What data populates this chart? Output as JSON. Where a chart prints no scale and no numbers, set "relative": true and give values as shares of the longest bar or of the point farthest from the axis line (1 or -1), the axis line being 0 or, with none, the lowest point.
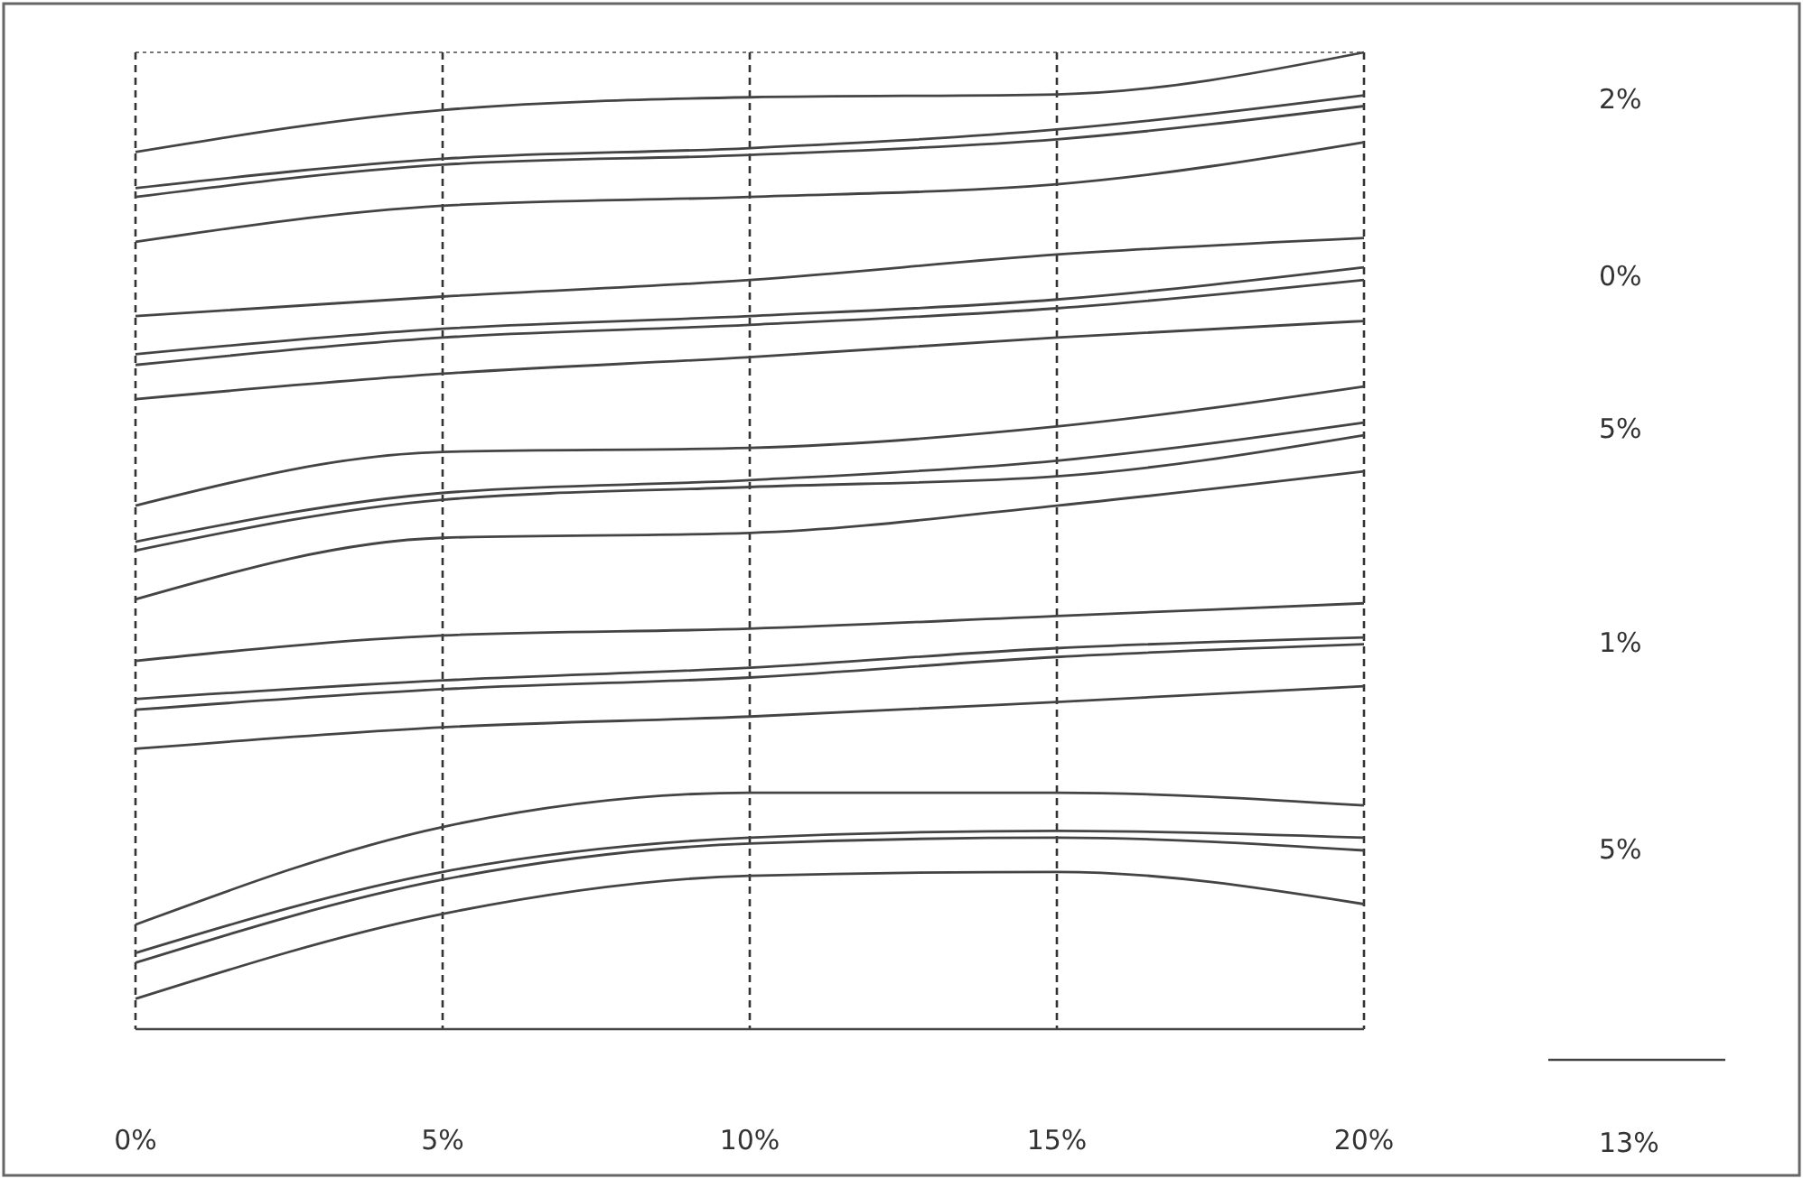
{
  "chart_data": {
    "type": "line",
    "relative": true,
    "x": [
      0,
      5,
      10,
      15,
      20
    ],
    "xlim": [
      0,
      20
    ],
    "xticks": [
      {
        "value": 0,
        "label": "0%"
      },
      {
        "value": 5,
        "label": "5%"
      },
      {
        "value": 10,
        "label": "10%"
      },
      {
        "value": 15,
        "label": "15%"
      },
      {
        "value": 20,
        "label": "20%"
      }
    ],
    "grid": "x",
    "marker": "none",
    "line_style": "solid",
    "annotations": [
      "2%",
      "0%",
      "5%",
      "1%",
      "5%",
      "13%"
    ],
    "series": [
      {
        "color": "#444444",
        "values": [
          0.898,
          0.941,
          0.954,
          0.957,
          1
        ]
      },
      {
        "color": "#444444",
        "values": [
          0.861,
          0.891,
          0.902,
          0.921,
          0.956
        ]
      },
      {
        "color": "#444444",
        "values": [
          0.852,
          0.885,
          0.895,
          0.911,
          0.945
        ]
      },
      {
        "color": "#444444",
        "values": [
          0.806,
          0.843,
          0.852,
          0.865,
          0.908
        ]
      },
      {
        "color": "#444444",
        "values": [
          0.73,
          0.75,
          0.767,
          0.793,
          0.81
        ]
      },
      {
        "color": "#444444",
        "values": [
          0.691,
          0.717,
          0.73,
          0.747,
          0.78
        ]
      },
      {
        "color": "#444444",
        "values": [
          0.68,
          0.708,
          0.721,
          0.738,
          0.767
        ]
      },
      {
        "color": "#444444",
        "values": [
          0.645,
          0.671,
          0.688,
          0.708,
          0.725
        ]
      },
      {
        "color": "#444444",
        "values": [
          0.536,
          0.591,
          0.595,
          0.617,
          0.658
        ]
      },
      {
        "color": "#444444",
        "values": [
          0.499,
          0.549,
          0.562,
          0.582,
          0.621
        ]
      },
      {
        "color": "#444444",
        "values": [
          0.49,
          0.542,
          0.555,
          0.566,
          0.608
        ]
      },
      {
        "color": "#444444",
        "values": [
          0.44,
          0.503,
          0.508,
          0.536,
          0.571
        ]
      },
      {
        "color": "#444444",
        "values": [
          0.377,
          0.403,
          0.41,
          0.423,
          0.436
        ]
      },
      {
        "color": "#444444",
        "values": [
          0.338,
          0.357,
          0.37,
          0.39,
          0.401
        ]
      },
      {
        "color": "#444444",
        "values": [
          0.327,
          0.348,
          0.36,
          0.381,
          0.394
        ]
      },
      {
        "color": "#444444",
        "values": [
          0.287,
          0.309,
          0.32,
          0.335,
          0.351
        ]
      },
      {
        "color": "#444444",
        "values": [
          0.107,
          0.207,
          0.242,
          0.242,
          0.229
        ]
      },
      {
        "color": "#444444",
        "values": [
          0.078,
          0.161,
          0.196,
          0.203,
          0.196
        ]
      },
      {
        "color": "#444444",
        "values": [
          0.068,
          0.153,
          0.19,
          0.196,
          0.183
        ]
      },
      {
        "color": "#444444",
        "values": [
          0.031,
          0.118,
          0.157,
          0.161,
          0.128
        ]
      }
    ]
  }
}
